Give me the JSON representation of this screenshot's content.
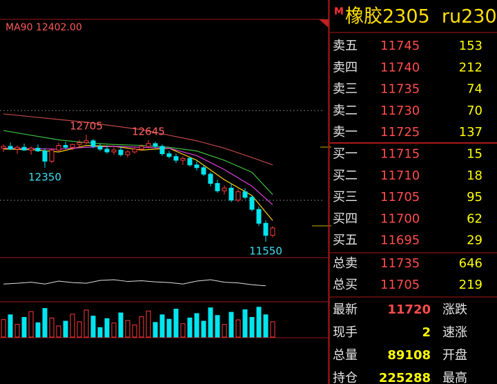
{
  "chart_data": [
    {
      "type": "candlestick",
      "label": "MA90 12402.00",
      "ylim": [
        11380,
        13950
      ],
      "up_color": "#ff3c3c",
      "down_color": "#00e5ee",
      "ohlc": [
        [
          12560,
          12600,
          12520,
          12580
        ],
        [
          12580,
          12620,
          12540,
          12550
        ],
        [
          12550,
          12590,
          12500,
          12570
        ],
        [
          12570,
          12610,
          12530,
          12540
        ],
        [
          12540,
          12580,
          12490,
          12560
        ],
        [
          12560,
          12600,
          12520,
          12530
        ],
        [
          12530,
          12560,
          12350,
          12420
        ],
        [
          12420,
          12560,
          12400,
          12540
        ],
        [
          12540,
          12620,
          12520,
          12590
        ],
        [
          12590,
          12630,
          12550,
          12570
        ],
        [
          12570,
          12610,
          12540,
          12600
        ],
        [
          12600,
          12650,
          12570,
          12620
        ],
        [
          12620,
          12705,
          12600,
          12640
        ],
        [
          12640,
          12660,
          12560,
          12580
        ],
        [
          12580,
          12610,
          12530,
          12550
        ],
        [
          12550,
          12590,
          12500,
          12520
        ],
        [
          12520,
          12570,
          12490,
          12540
        ],
        [
          12540,
          12580,
          12470,
          12490
        ],
        [
          12490,
          12540,
          12460,
          12520
        ],
        [
          12520,
          12570,
          12500,
          12550
        ],
        [
          12550,
          12600,
          12530,
          12580
        ],
        [
          12580,
          12645,
          12560,
          12610
        ],
        [
          12610,
          12630,
          12560,
          12580
        ],
        [
          12580,
          12600,
          12480,
          12500
        ],
        [
          12500,
          12530,
          12450,
          12470
        ],
        [
          12470,
          12500,
          12400,
          12430
        ],
        [
          12430,
          12470,
          12380,
          12450
        ],
        [
          12450,
          12470,
          12360,
          12380
        ],
        [
          12380,
          12420,
          12320,
          12350
        ],
        [
          12350,
          12380,
          12260,
          12280
        ],
        [
          12280,
          12300,
          12150,
          12180
        ],
        [
          12180,
          12220,
          12080,
          12100
        ],
        [
          12100,
          12160,
          12060,
          12130
        ],
        [
          12130,
          12180,
          11980,
          12000
        ],
        [
          12000,
          12120,
          11980,
          12090
        ],
        [
          12090,
          12130,
          12010,
          12030
        ],
        [
          12030,
          12050,
          11880,
          11900
        ],
        [
          11900,
          11930,
          11720,
          11750
        ],
        [
          11750,
          11780,
          11550,
          11620
        ],
        [
          11620,
          11720,
          11600,
          11700
        ]
      ],
      "annotations": [
        12705,
        12645,
        12350,
        11550
      ],
      "series": [
        {
          "color": "#ffd700",
          "x": [
            0,
            4,
            8,
            12,
            16,
            20,
            24,
            28,
            32,
            36,
            39
          ],
          "values": [
            12550,
            12545,
            12520,
            12590,
            12580,
            12540,
            12560,
            12430,
            12220,
            12050,
            11780
          ]
        },
        {
          "color": "#e040e0",
          "x": [
            0,
            4,
            8,
            12,
            16,
            20,
            24,
            28,
            32,
            36,
            39
          ],
          "values": [
            12560,
            12555,
            12550,
            12570,
            12580,
            12570,
            12560,
            12480,
            12330,
            12150,
            11950
          ]
        },
        {
          "color": "#40c040",
          "x": [
            0,
            4,
            8,
            12,
            16,
            20,
            24,
            28,
            32,
            36,
            39
          ],
          "values": [
            12750,
            12700,
            12650,
            12620,
            12600,
            12590,
            12570,
            12530,
            12430,
            12300,
            12060
          ]
        },
        {
          "color": "#c04848",
          "x": [
            0,
            4,
            8,
            12,
            16,
            20,
            24,
            28,
            32,
            36,
            39
          ],
          "values": [
            12930,
            12900,
            12870,
            12840,
            12800,
            12760,
            12700,
            12640,
            12560,
            12460,
            12380
          ]
        }
      ]
    },
    {
      "type": "line",
      "ylim": [
        0,
        100
      ],
      "color": "#e0e0e0",
      "x": [
        0,
        2,
        4,
        6,
        8,
        10,
        12,
        14,
        16,
        18,
        20,
        22,
        24,
        26,
        28,
        30,
        32,
        34,
        36,
        38
      ],
      "values": [
        40,
        42,
        45,
        40,
        48,
        44,
        42,
        50,
        52,
        47,
        49,
        46,
        44,
        40,
        48,
        52,
        45,
        43,
        38,
        35
      ]
    },
    {
      "type": "bar",
      "ylim": [
        0,
        100
      ],
      "values": [
        55,
        70,
        40,
        62,
        80,
        45,
        90,
        60,
        35,
        50,
        72,
        48,
        85,
        66,
        30,
        58,
        44,
        76,
        52,
        38,
        64,
        82,
        46,
        70,
        56,
        88,
        42,
        60,
        74,
        50,
        92,
        68,
        40,
        78,
        54,
        86,
        62,
        94,
        70,
        48
      ]
    }
  ],
  "quote_panel": {
    "badge": "M",
    "title": "橡胶2305  ru230",
    "book": [
      {
        "label": "卖五",
        "price": 11745,
        "volume": 153
      },
      {
        "label": "卖四",
        "price": 11740,
        "volume": 212
      },
      {
        "label": "卖三",
        "price": 11735,
        "volume": 74
      },
      {
        "label": "卖二",
        "price": 11730,
        "volume": 70
      },
      {
        "label": "卖一",
        "price": 11725,
        "volume": 137
      },
      {
        "label": "买一",
        "price": 11715,
        "volume": 15
      },
      {
        "label": "买二",
        "price": 11710,
        "volume": 18
      },
      {
        "label": "买三",
        "price": 11705,
        "volume": 95
      },
      {
        "label": "买四",
        "price": 11700,
        "volume": 62
      },
      {
        "label": "买五",
        "price": 11695,
        "volume": 29
      }
    ],
    "totals": [
      {
        "label": "总卖",
        "price": 11735,
        "volume": 646
      },
      {
        "label": "总买",
        "price": 11705,
        "volume": 219
      }
    ],
    "stats": [
      {
        "label": "最新",
        "value": 11720,
        "side": "涨跌"
      },
      {
        "label": "现手",
        "value": 2,
        "side": "速涨"
      },
      {
        "label": "总量",
        "value": 89108,
        "side": "开盘"
      },
      {
        "label": "持仓",
        "value": 225288,
        "side": "最高"
      }
    ]
  }
}
